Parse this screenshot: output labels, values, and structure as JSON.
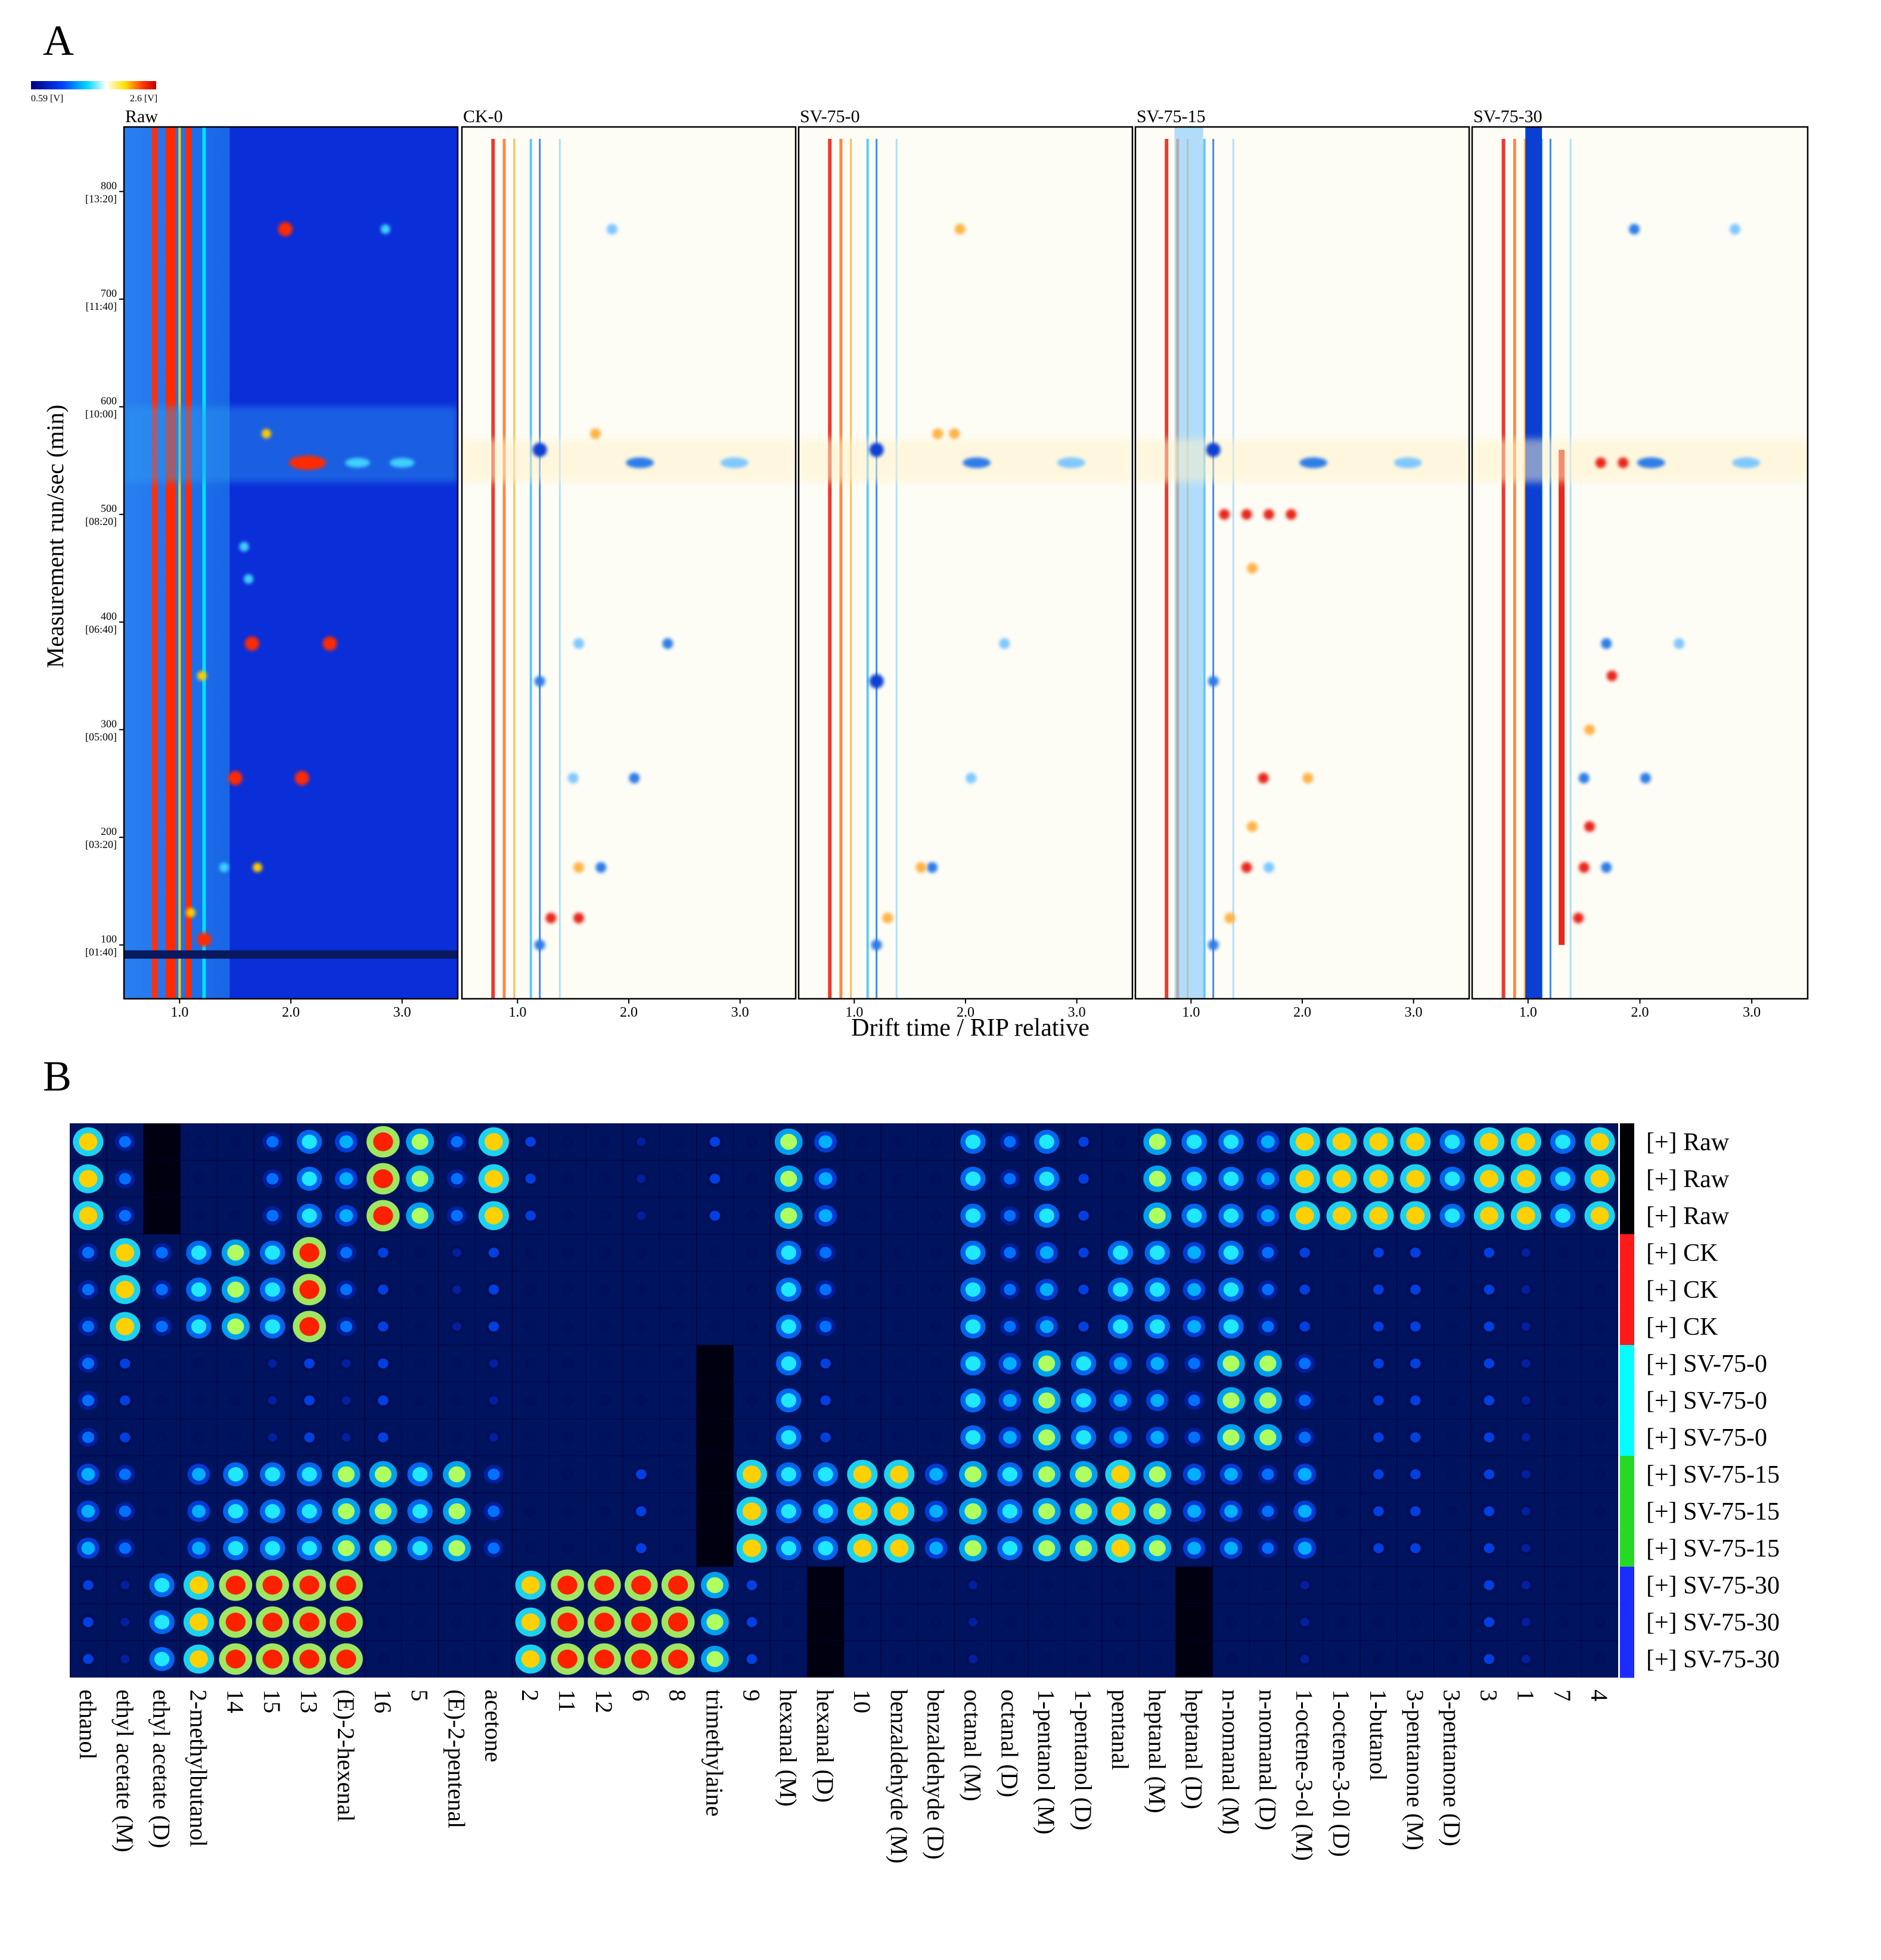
{
  "panel_a": {
    "label": "A",
    "colorbar": {
      "min_label": "0.59 [V]",
      "max_label": "2.6 [V]"
    },
    "ylabel": "Measurement run/sec (min)",
    "xlabel": "Drift time / RIP relative",
    "y_ticks": [
      {
        "value": 100,
        "label": "100",
        "sub": "[01:40]"
      },
      {
        "value": 200,
        "label": "200",
        "sub": "[03:20]"
      },
      {
        "value": 300,
        "label": "300",
        "sub": "[05:00]"
      },
      {
        "value": 400,
        "label": "400",
        "sub": "[06:40]"
      },
      {
        "value": 500,
        "label": "500",
        "sub": "[08:20]"
      },
      {
        "value": 600,
        "label": "600",
        "sub": "[10:00]"
      },
      {
        "value": 700,
        "label": "700",
        "sub": "[11:40]"
      },
      {
        "value": 800,
        "label": "800",
        "sub": "[13:20]"
      }
    ],
    "x_ticks": [
      {
        "value": 1.0,
        "label": "1.0"
      },
      {
        "value": 2.0,
        "label": "2.0"
      },
      {
        "value": 3.0,
        "label": "3.0"
      }
    ],
    "colors": {
      "raw_bg": "#0a2ed8",
      "diff_bg": "#fdfdf6",
      "red": "#e8261a",
      "blue": "#0b3fd2",
      "cyan": "#4fc3f7"
    }
  },
  "chart_data": [
    {
      "type": "heatmap",
      "title": "GC-IMS topographic plots",
      "xlabel": "Drift time / RIP relative",
      "ylabel": "Measurement run/sec (min)",
      "xlim": [
        0.5,
        3.5
      ],
      "ylim": [
        50,
        860
      ],
      "panels": [
        "Raw",
        "CK-0",
        "SV-75-0",
        "SV-75-15",
        "SV-75-30"
      ],
      "colorbar_range_V": [
        0.59,
        2.6
      ],
      "raw_spots": [
        {
          "x": 1.95,
          "y": 765,
          "v": 3
        },
        {
          "x": 2.85,
          "y": 765,
          "v": 1
        },
        {
          "x": 1.78,
          "y": 575,
          "v": 2
        },
        {
          "x": 2.15,
          "y": 548,
          "v": 3
        },
        {
          "x": 2.6,
          "y": 548,
          "v": 1
        },
        {
          "x": 3.0,
          "y": 548,
          "v": 1
        },
        {
          "x": 1.65,
          "y": 380,
          "v": 3
        },
        {
          "x": 2.35,
          "y": 380,
          "v": 3
        },
        {
          "x": 1.2,
          "y": 350,
          "v": 2
        },
        {
          "x": 1.5,
          "y": 255,
          "v": 3
        },
        {
          "x": 2.1,
          "y": 255,
          "v": 3
        },
        {
          "x": 1.7,
          "y": 172,
          "v": 2
        },
        {
          "x": 1.4,
          "y": 172,
          "v": 1
        },
        {
          "x": 1.1,
          "y": 130,
          "v": 2
        },
        {
          "x": 1.22,
          "y": 105,
          "v": 3
        },
        {
          "x": 1.58,
          "y": 470,
          "v": 1
        },
        {
          "x": 1.62,
          "y": 440,
          "v": 1
        }
      ],
      "difference_spots": {
        "CK-0": [
          {
            "x": 1.2,
            "y": 560,
            "v": -3
          },
          {
            "x": 2.1,
            "y": 548,
            "v": -2
          },
          {
            "x": 2.95,
            "y": 548,
            "v": -1
          },
          {
            "x": 1.7,
            "y": 575,
            "v": 1
          },
          {
            "x": 1.55,
            "y": 380,
            "v": -1
          },
          {
            "x": 2.35,
            "y": 380,
            "v": -2
          },
          {
            "x": 1.2,
            "y": 345,
            "v": -2
          },
          {
            "x": 1.5,
            "y": 255,
            "v": -1
          },
          {
            "x": 2.05,
            "y": 255,
            "v": -2
          },
          {
            "x": 1.75,
            "y": 172,
            "v": -2
          },
          {
            "x": 1.55,
            "y": 172,
            "v": 1
          },
          {
            "x": 1.3,
            "y": 125,
            "v": 2
          },
          {
            "x": 1.55,
            "y": 125,
            "v": 2
          },
          {
            "x": 1.2,
            "y": 100,
            "v": -2
          },
          {
            "x": 1.85,
            "y": 765,
            "v": -1
          }
        ],
        "SV-75-0": [
          {
            "x": 1.2,
            "y": 560,
            "v": -3
          },
          {
            "x": 2.1,
            "y": 548,
            "v": -2
          },
          {
            "x": 2.95,
            "y": 548,
            "v": -1
          },
          {
            "x": 1.75,
            "y": 575,
            "v": 1
          },
          {
            "x": 1.9,
            "y": 575,
            "v": 1
          },
          {
            "x": 2.35,
            "y": 380,
            "v": -1
          },
          {
            "x": 1.2,
            "y": 345,
            "v": -3
          },
          {
            "x": 2.05,
            "y": 255,
            "v": -1
          },
          {
            "x": 1.7,
            "y": 172,
            "v": -2
          },
          {
            "x": 1.6,
            "y": 172,
            "v": 1
          },
          {
            "x": 1.3,
            "y": 125,
            "v": 1
          },
          {
            "x": 1.2,
            "y": 100,
            "v": -2
          },
          {
            "x": 1.95,
            "y": 765,
            "v": 1
          }
        ],
        "SV-75-15": [
          {
            "x": 1.2,
            "y": 560,
            "v": -3
          },
          {
            "x": 2.1,
            "y": 548,
            "v": -2
          },
          {
            "x": 2.95,
            "y": 548,
            "v": -1
          },
          {
            "x": 1.3,
            "y": 500,
            "v": 2
          },
          {
            "x": 1.5,
            "y": 500,
            "v": 2
          },
          {
            "x": 1.7,
            "y": 500,
            "v": 2
          },
          {
            "x": 1.9,
            "y": 500,
            "v": 2
          },
          {
            "x": 1.55,
            "y": 450,
            "v": 1
          },
          {
            "x": 1.2,
            "y": 345,
            "v": -2
          },
          {
            "x": 1.65,
            "y": 255,
            "v": 2
          },
          {
            "x": 2.05,
            "y": 255,
            "v": 1
          },
          {
            "x": 1.5,
            "y": 172,
            "v": 2
          },
          {
            "x": 1.7,
            "y": 172,
            "v": -1
          },
          {
            "x": 1.35,
            "y": 125,
            "v": 1
          },
          {
            "x": 1.2,
            "y": 100,
            "v": -2
          },
          {
            "x": 1.55,
            "y": 210,
            "v": 1
          }
        ],
        "SV-75-30": [
          {
            "x": 1.95,
            "y": 765,
            "v": -2
          },
          {
            "x": 2.85,
            "y": 765,
            "v": -1
          },
          {
            "x": 2.1,
            "y": 548,
            "v": -2
          },
          {
            "x": 2.95,
            "y": 548,
            "v": -1
          },
          {
            "x": 1.65,
            "y": 548,
            "v": 2
          },
          {
            "x": 1.85,
            "y": 548,
            "v": 2
          },
          {
            "x": 1.7,
            "y": 380,
            "v": -2
          },
          {
            "x": 2.35,
            "y": 380,
            "v": -1
          },
          {
            "x": 1.75,
            "y": 350,
            "v": 2
          },
          {
            "x": 1.5,
            "y": 255,
            "v": -2
          },
          {
            "x": 2.05,
            "y": 255,
            "v": -2
          },
          {
            "x": 1.7,
            "y": 172,
            "v": -2
          },
          {
            "x": 1.5,
            "y": 172,
            "v": 2
          },
          {
            "x": 1.45,
            "y": 125,
            "v": 2
          },
          {
            "x": 1.55,
            "y": 210,
            "v": 2
          },
          {
            "x": 1.55,
            "y": 300,
            "v": 1
          }
        ]
      }
    },
    {
      "type": "heatmap",
      "title": "Gallery plot fingerprint",
      "rows": [
        {
          "label": "[+] Raw",
          "group": "Raw"
        },
        {
          "label": "[+] Raw",
          "group": "Raw"
        },
        {
          "label": "[+] Raw",
          "group": "Raw"
        },
        {
          "label": "[+] CK",
          "group": "CK"
        },
        {
          "label": "[+] CK",
          "group": "CK"
        },
        {
          "label": "[+] CK",
          "group": "CK"
        },
        {
          "label": "[+] SV-75-0",
          "group": "SV-75-0"
        },
        {
          "label": "[+] SV-75-0",
          "group": "SV-75-0"
        },
        {
          "label": "[+] SV-75-0",
          "group": "SV-75-0"
        },
        {
          "label": "[+] SV-75-15",
          "group": "SV-75-15"
        },
        {
          "label": "[+] SV-75-15",
          "group": "SV-75-15"
        },
        {
          "label": "[+] SV-75-15",
          "group": "SV-75-15"
        },
        {
          "label": "[+] SV-75-30",
          "group": "SV-75-30"
        },
        {
          "label": "[+] SV-75-30",
          "group": "SV-75-30"
        },
        {
          "label": "[+] SV-75-30",
          "group": "SV-75-30"
        }
      ],
      "group_colors": {
        "Raw": "#000000",
        "CK": "#ff1a1a",
        "SV-75-0": "#00ffff",
        "SV-75-15": "#26d926",
        "SV-75-30": "#1a2cff"
      },
      "columns": [
        "ethanol",
        "ethyl acetate (M)",
        "ethyl acetate (D)",
        "2-methylbutanol",
        "14",
        "15",
        "13",
        "(E)-2-hexenal",
        "16",
        "5",
        "(E)-2-pentenal",
        "acetone",
        "2",
        "11",
        "12",
        "6",
        "8",
        "trimethylaine",
        "9",
        "hexanal (M)",
        "hexanal (D)",
        "10",
        "benzaldehyde (M)",
        "benzaldehyde (D)",
        "octanal (M)",
        "octanal (D)",
        "1-pentanol (M)",
        "1-pentanol (D)",
        "pentanal",
        "heptanal (M)",
        "heptanal (D)",
        "n-nomanal (M)",
        "n-nomanal (D)",
        "1-octene-3-ol (M)",
        "1-octene-3-0l (D)",
        "1-butanol",
        "3-pentanone (M)",
        "3-pentanone (D)",
        "3",
        "1",
        "7",
        "4"
      ],
      "value_scale": "0 = low (dark blue) to 9 = high (red)",
      "values_by_group": {
        "Raw": [
          8,
          4,
          0,
          1,
          1,
          4,
          6,
          5,
          9,
          7,
          4,
          8,
          3,
          1,
          1,
          2,
          1,
          3,
          1,
          7,
          5,
          1,
          1,
          1,
          6,
          4,
          6,
          3,
          1,
          7,
          6,
          6,
          5,
          8,
          8,
          8,
          8,
          6,
          8,
          8,
          6,
          8
        ],
        "CK": [
          4,
          8,
          4,
          6,
          7,
          6,
          9,
          4,
          3,
          1,
          2,
          3,
          1,
          1,
          1,
          1,
          1,
          1,
          1,
          6,
          4,
          1,
          1,
          1,
          6,
          4,
          5,
          3,
          6,
          6,
          5,
          6,
          4,
          3,
          1,
          3,
          3,
          1,
          3,
          2,
          1,
          1
        ],
        "SV-75-0": [
          4,
          3,
          1,
          1,
          1,
          2,
          3,
          2,
          3,
          1,
          1,
          2,
          1,
          1,
          1,
          1,
          1,
          0,
          1,
          6,
          3,
          1,
          1,
          1,
          6,
          5,
          7,
          6,
          5,
          5,
          4,
          7,
          7,
          4,
          1,
          3,
          3,
          1,
          3,
          2,
          1,
          1
        ],
        "SV-75-15": [
          5,
          4,
          1,
          5,
          6,
          6,
          6,
          7,
          7,
          6,
          7,
          4,
          1,
          1,
          1,
          3,
          1,
          0,
          8,
          6,
          6,
          8,
          8,
          5,
          7,
          6,
          7,
          7,
          8,
          7,
          5,
          5,
          4,
          5,
          1,
          3,
          3,
          1,
          3,
          2,
          1,
          1
        ],
        "SV-75-30": [
          3,
          2,
          6,
          8,
          9,
          9,
          9,
          9,
          1,
          1,
          1,
          1,
          8,
          9,
          9,
          9,
          9,
          7,
          3,
          1,
          0,
          1,
          1,
          1,
          2,
          1,
          1,
          1,
          1,
          1,
          0,
          1,
          1,
          2,
          1,
          1,
          1,
          1,
          3,
          2,
          1,
          1
        ]
      }
    }
  ],
  "panel_b": {
    "label": "B"
  }
}
